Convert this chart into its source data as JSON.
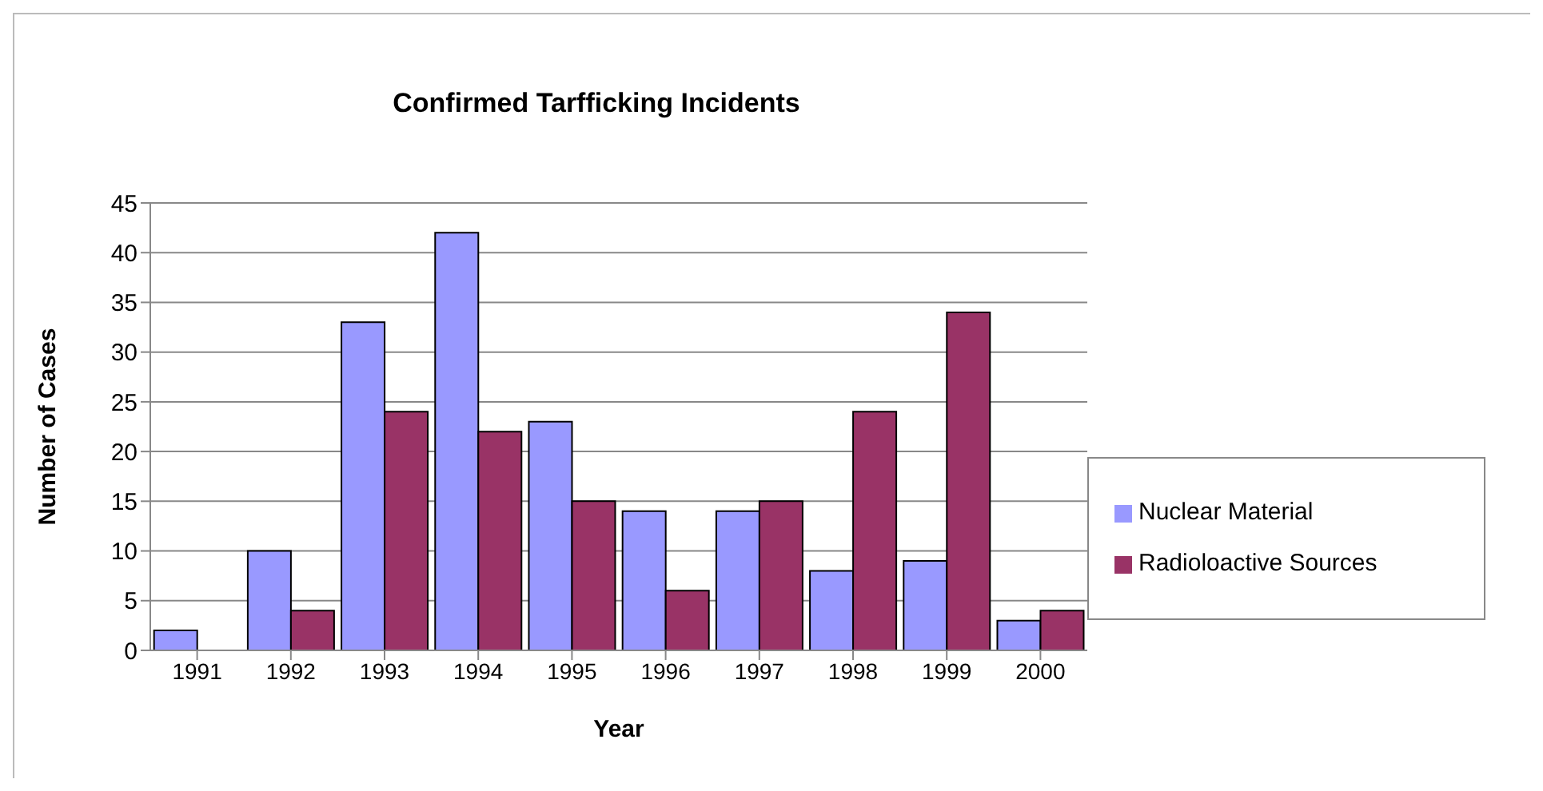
{
  "chart_data": {
    "type": "bar",
    "title": "Confirmed Tarfficking Incidents",
    "xlabel": "Year",
    "ylabel": "Number of Cases",
    "categories": [
      "1991",
      "1992",
      "1993",
      "1994",
      "1995",
      "1996",
      "1997",
      "1998",
      "1999",
      "2000"
    ],
    "series": [
      {
        "name": "Nuclear Material",
        "color": "#9999ff",
        "values": [
          2,
          10,
          33,
          42,
          23,
          14,
          14,
          8,
          9,
          3
        ]
      },
      {
        "name": "Radioloactive Sources",
        "color": "#993366",
        "values": [
          0,
          4,
          24,
          22,
          15,
          6,
          15,
          24,
          34,
          4
        ]
      }
    ],
    "ylim": [
      0,
      45
    ],
    "yticks": [
      0,
      5,
      10,
      15,
      20,
      25,
      30,
      35,
      40,
      45
    ],
    "grid": "y",
    "legend": "right"
  }
}
